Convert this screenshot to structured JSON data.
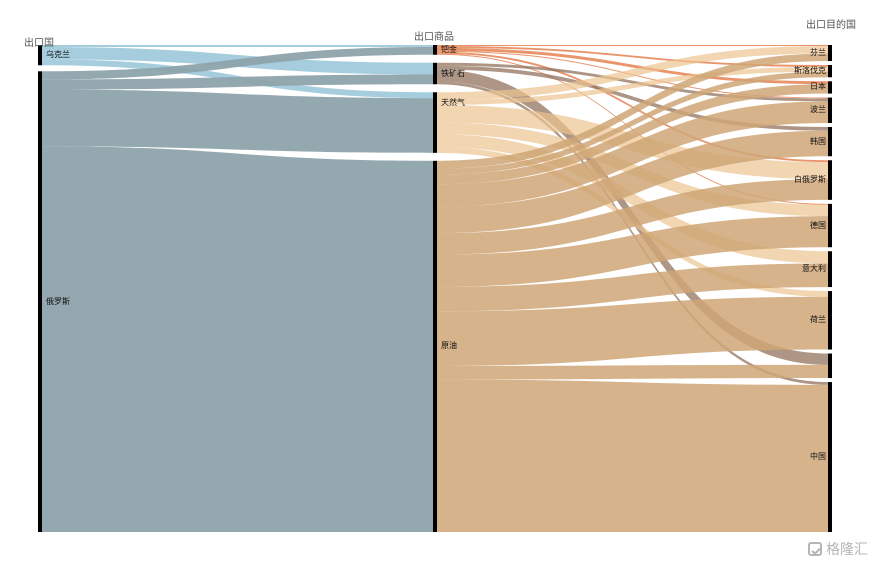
{
  "headers": {
    "source": "出口国",
    "product": "出口商品",
    "destination": "出口目的国"
  },
  "sources": [
    {
      "id": "ukraine",
      "label": "乌克兰",
      "color": "#8fc0d4"
    },
    {
      "id": "russia",
      "label": "俄罗斯",
      "color": "#8ea3ab"
    }
  ],
  "products": [
    {
      "id": "palladium",
      "label": "钯金",
      "color": "#e0682e"
    },
    {
      "id": "ironore",
      "label": "铁矿石",
      "color": "#8a6a52"
    },
    {
      "id": "gas",
      "label": "天然气",
      "color": "#edc390"
    },
    {
      "id": "oil",
      "label": "原油",
      "color": "#cfa676"
    }
  ],
  "destinations": [
    {
      "id": "finland",
      "label": "芬兰"
    },
    {
      "id": "slovakia",
      "label": "斯洛伐克"
    },
    {
      "id": "japan",
      "label": "日本"
    },
    {
      "id": "poland",
      "label": "波兰"
    },
    {
      "id": "korea",
      "label": "韩国"
    },
    {
      "id": "belarus",
      "label": "白俄罗斯"
    },
    {
      "id": "germany",
      "label": "德国"
    },
    {
      "id": "italy",
      "label": "意大利"
    },
    {
      "id": "netherlands",
      "label": "荷兰"
    },
    {
      "id": "other",
      "label": ""
    },
    {
      "id": "china",
      "label": "中国"
    }
  ],
  "flows_source_product": [
    {
      "source": "ukraine",
      "product": "palladium",
      "value": 2
    },
    {
      "source": "ukraine",
      "product": "ironore",
      "value": 12
    },
    {
      "source": "ukraine",
      "product": "gas",
      "value": 6
    },
    {
      "source": "russia",
      "product": "palladium",
      "value": 8
    },
    {
      "source": "russia",
      "product": "ironore",
      "value": 10
    },
    {
      "source": "russia",
      "product": "gas",
      "value": 56
    },
    {
      "source": "russia",
      "product": "oil",
      "value": 380
    }
  ],
  "flows_product_destination": [
    {
      "product": "palladium",
      "dest": "finland",
      "value": 1
    },
    {
      "product": "palladium",
      "dest": "slovakia",
      "value": 2
    },
    {
      "product": "palladium",
      "dest": "japan",
      "value": 3
    },
    {
      "product": "palladium",
      "dest": "poland",
      "value": 1
    },
    {
      "product": "palladium",
      "dest": "belarus",
      "value": 2
    },
    {
      "product": "palladium",
      "dest": "germany",
      "value": 1
    },
    {
      "product": "ironore",
      "dest": "poland",
      "value": 3
    },
    {
      "product": "ironore",
      "dest": "korea",
      "value": 4
    },
    {
      "product": "ironore",
      "dest": "other",
      "value": 12
    },
    {
      "product": "ironore",
      "dest": "china",
      "value": 3
    },
    {
      "product": "gas",
      "dest": "finland",
      "value": 8
    },
    {
      "product": "gas",
      "dest": "slovakia",
      "value": 5
    },
    {
      "product": "gas",
      "dest": "belarus",
      "value": 18
    },
    {
      "product": "gas",
      "dest": "germany",
      "value": 12
    },
    {
      "product": "gas",
      "dest": "italy",
      "value": 13
    },
    {
      "product": "gas",
      "dest": "netherlands",
      "value": 6
    },
    {
      "product": "oil",
      "dest": "finland",
      "value": 8
    },
    {
      "product": "oil",
      "dest": "slovakia",
      "value": 6
    },
    {
      "product": "oil",
      "dest": "japan",
      "value": 10
    },
    {
      "product": "oil",
      "dest": "poland",
      "value": 23
    },
    {
      "product": "oil",
      "dest": "korea",
      "value": 27
    },
    {
      "product": "oil",
      "dest": "belarus",
      "value": 22
    },
    {
      "product": "oil",
      "dest": "germany",
      "value": 33
    },
    {
      "product": "oil",
      "dest": "italy",
      "value": 25
    },
    {
      "product": "oil",
      "dest": "netherlands",
      "value": 56
    },
    {
      "product": "oil",
      "dest": "other",
      "value": 14
    },
    {
      "product": "oil",
      "dest": "china",
      "value": 156
    }
  ],
  "watermark": {
    "text": "格隆汇",
    "icon": "logo-icon"
  }
}
